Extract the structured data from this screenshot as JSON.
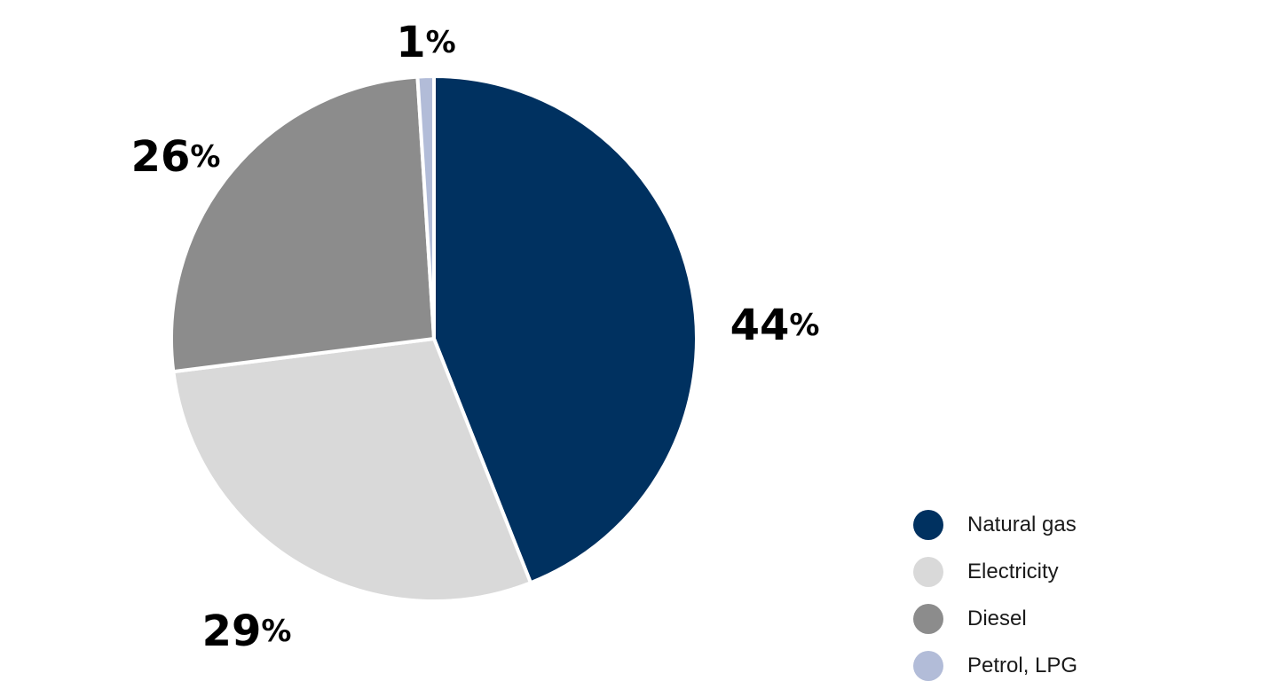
{
  "chart_data": {
    "type": "pie",
    "title": "",
    "unit": "%",
    "start_angle_deg": 0,
    "direction": "clockwise",
    "legend_position": "bottom-right",
    "slices": [
      {
        "label": "Natural gas",
        "value": 44,
        "color": "#003160"
      },
      {
        "label": "Electricity",
        "value": 29,
        "color": "#d9d9d9"
      },
      {
        "label": "Diesel",
        "value": 26,
        "color": "#8c8c8c"
      },
      {
        "label": "Petrol, LPG",
        "value": 1,
        "color": "#b2bcd8"
      }
    ]
  }
}
